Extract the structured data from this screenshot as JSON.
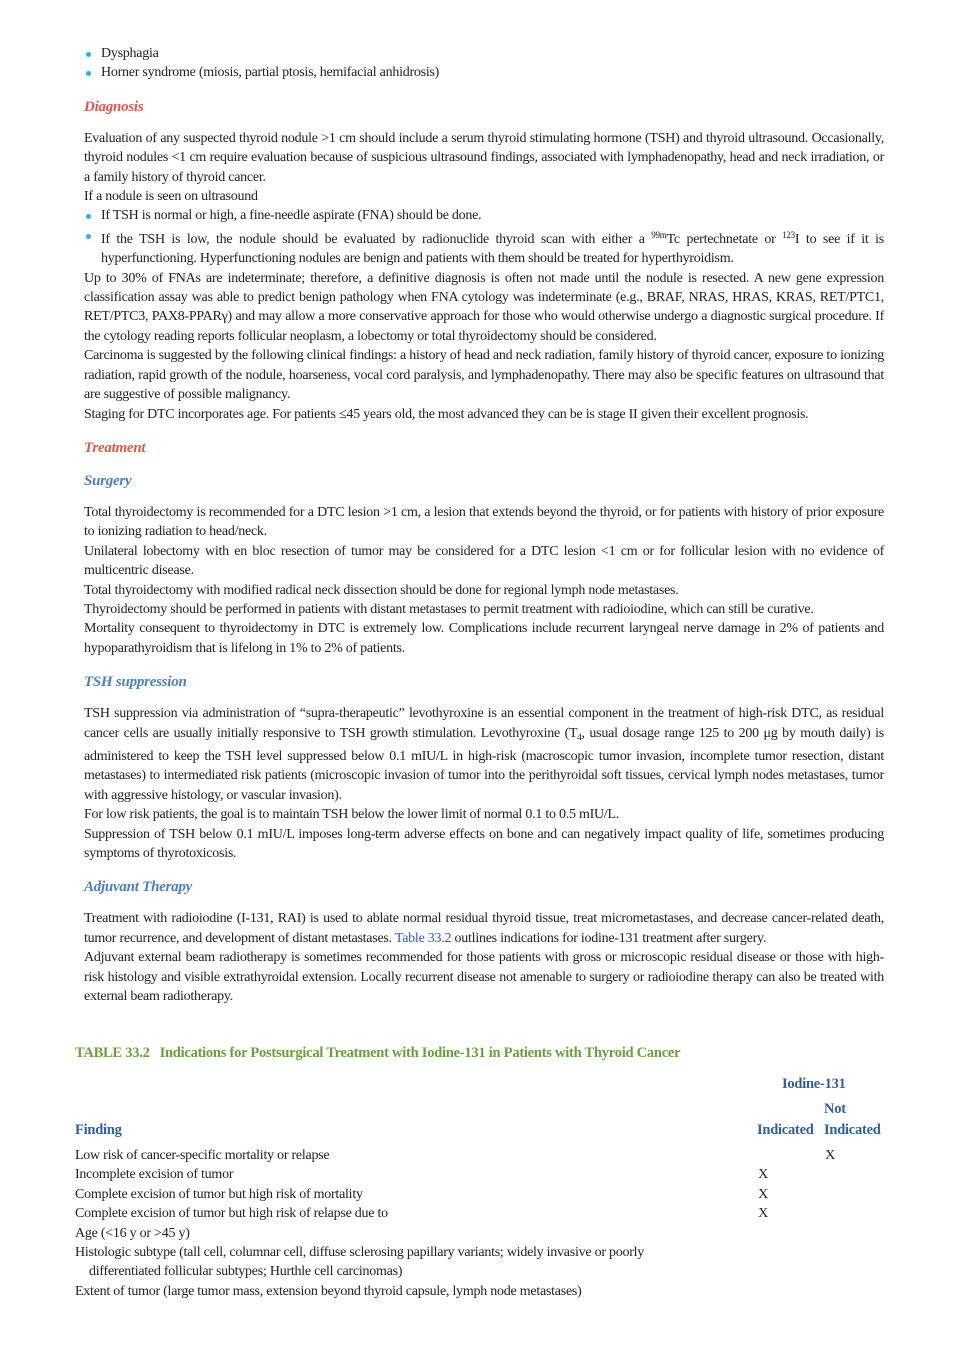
{
  "top_bullets": [
    "Dysphagia",
    "Horner syndrome (miosis, partial ptosis, hemifacial anhidrosis)"
  ],
  "diagnosis": {
    "heading": "Diagnosis",
    "paragraphs": [
      "Evaluation of any suspected thyroid nodule >1 cm should include a serum thyroid stimulating hormone (TSH) and thyroid ultrasound. Occasionally, thyroid nodules <1 cm require evaluation because of suspicious ultrasound findings, associated with lymphadenopathy, head and neck irradiation, or a family history of thyroid cancer.",
      "If a nodule is seen on ultrasound"
    ],
    "bullets": [
      "If TSH is normal or high, a fine-needle aspirate (FNA) should be done.",
      [
        "If the TSH is low, the nodule should be evaluated by radionuclide thyroid scan with either a ",
        "99m",
        "Tc pertechnetate or ",
        "123",
        "I to see if it is hyperfunctioning. Hyperfunctioning nodules are benign and patients with them should be treated for hyperthyroidism."
      ]
    ],
    "paragraphs_after": [
      "Up to 30% of FNAs are indeterminate; therefore, a definitive diagnosis is often not made until the nodule is resected. A new gene expression classification assay was able to predict benign pathology when FNA cytology was indeterminate (e.g., BRAF, NRAS, HRAS, KRAS, RET/PTC1, RET/PTC3, PAX8-PPARγ) and may allow a more conservative approach for those who would otherwise undergo a diagnostic surgical procedure. If the cytology reading reports follicular neoplasm, a lobectomy or total thyroidectomy should be considered.",
      "Carcinoma is suggested by the following clinical findings: a history of head and neck radiation, family history of thyroid cancer, exposure to ionizing radiation, rapid growth of the nodule, hoarseness, vocal cord paralysis, and lymphadenopathy. There may also be specific features on ultrasound that are suggestive of possible malignancy.",
      "Staging for DTC incorporates age. For patients ≤45 years old, the most advanced they can be is stage II given their excellent prognosis."
    ]
  },
  "treatment": {
    "heading": "Treatment"
  },
  "surgery": {
    "heading": "Surgery",
    "paragraphs": [
      "Total thyroidectomy is recommended for a DTC lesion >1 cm, a lesion that extends beyond the thyroid, or for patients with history of prior exposure to ionizing radiation to head/neck.",
      "Unilateral lobectomy with en bloc resection of tumor may be considered for a DTC lesion <1 cm or for follicular lesion with no evidence of multicentric disease.",
      "Total thyroidectomy with modified radical neck dissection should be done for regional lymph node metastases.",
      "Thyroidectomy should be performed in patients with distant metastases to permit treatment with radioiodine, which can still be curative.",
      "Mortality consequent to thyroidectomy in DTC is extremely low. Complications include recurrent laryngeal nerve damage in 2% of patients and hypoparathyroidism that is lifelong in 1% to 2% of patients."
    ]
  },
  "tsh_suppression": {
    "heading": "TSH suppression",
    "paragraphs": [
      [
        "TSH suppression via administration of “supra-therapeutic” levothyroxine is an essential component in the treatment of high-risk DTC, as residual cancer cells are usually initially responsive to TSH growth stimulation. Levothyroxine (T",
        "4",
        ", usual dosage range 125 to 200 μg by mouth daily) is administered to keep the TSH level suppressed below 0.1 mIU/L in high-risk (macroscopic tumor invasion, incomplete tumor resection, distant metastases) to intermediated risk patients (microscopic invasion of tumor into the perithyroidal soft tissues, cervical lymph nodes metastases, tumor with aggressive histology, or vascular invasion)."
      ],
      "For low risk patients, the goal is to maintain TSH below the lower limit of normal 0.1 to 0.5 mIU/L.",
      "Suppression of TSH below 0.1 mIU/L imposes long-term adverse effects on bone and can negatively impact quality of life, sometimes producing symptoms of thyrotoxicosis."
    ]
  },
  "adjuvant_therapy": {
    "heading": "Adjuvant Therapy",
    "paragraphs": [
      [
        "Treatment with radioiodine (I-131, RAI) is used to ablate normal residual thyroid tissue, treat micrometastases, and decrease cancer-related death, tumor recurrence, and development of distant metastases. ",
        "Table 33.2",
        " outlines indications for iodine-131 treatment after surgery."
      ],
      "Adjuvant external beam radiotherapy is sometimes recommended for those patients with gross or microscopic residual disease or those with high-risk histology and visible extrathyroidal extension. Locally recurrent disease not amenable to surgery or radioiodine therapy can also be treated with external beam radiotherapy."
    ]
  },
  "table": {
    "label": "TABLE 33.2",
    "caption": "Indications for Postsurgical Treatment with Iodine-131 in Patients with Thyroid Cancer",
    "group_header": "Iodine-131",
    "headers": [
      "Finding",
      "Indicated",
      "Not",
      "Indicated"
    ],
    "rows": [
      {
        "finding": "Low risk of cancer-specific mortality or relapse",
        "not_indicated": "X"
      },
      {
        "finding": "Incomplete excision of tumor",
        "indicated": "X"
      },
      {
        "finding": "Complete excision of tumor but high risk of mortality",
        "indicated": "X"
      },
      {
        "finding": "Complete excision of tumor but high risk of relapse due to",
        "indicated": "X"
      }
    ],
    "sub_items": [
      "Age (<16 y or >45 y)",
      "Histologic subtype (tall cell, columnar cell, diffuse sclerosing papillary variants; widely invasive or poorly differentiated follicular subtypes; Hurthle cell carcinomas)",
      "Extent of tumor (large tumor mass, extension beyond thyroid capsule, lymph node metastases)"
    ]
  }
}
